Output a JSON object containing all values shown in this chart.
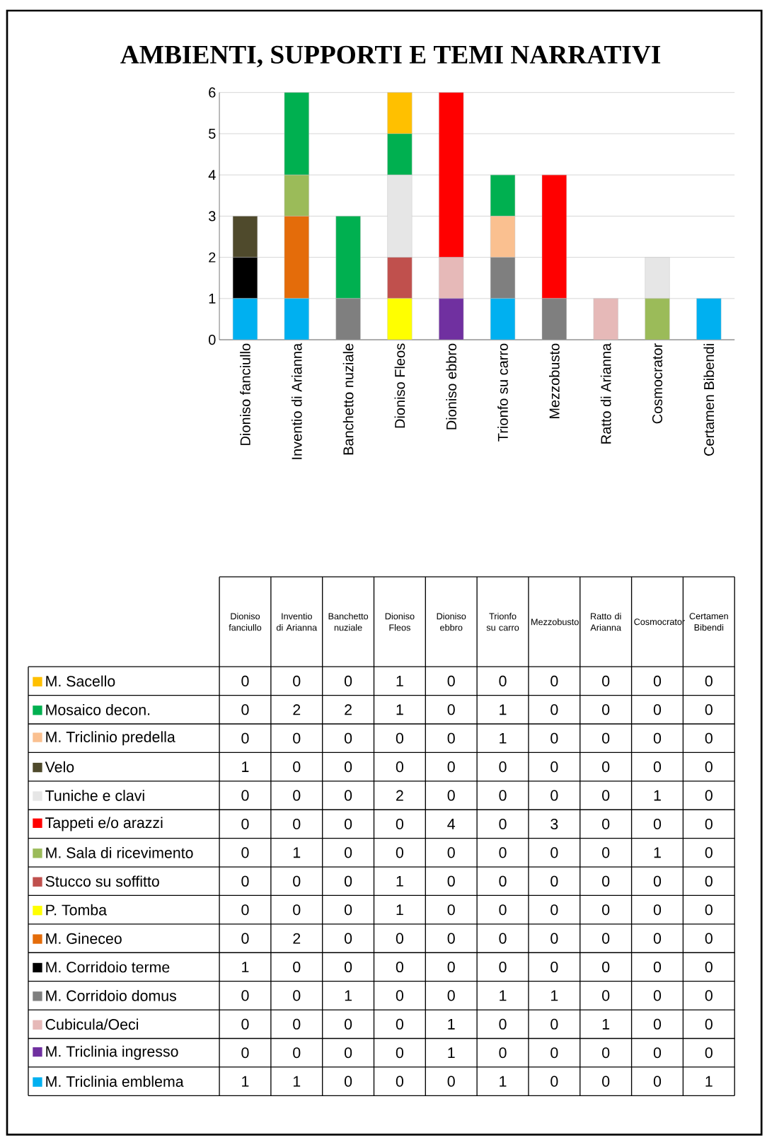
{
  "chart_data": {
    "type": "bar",
    "title": "AMBIENTI, SUPPORTI E TEMI NARRATIVI",
    "categories": [
      "Dioniso fanciullo",
      "Inventio di Arianna",
      "Banchetto nuziale",
      "Dioniso Fleos",
      "Dioniso ebbro",
      "Trionfo su carro",
      "Mezzobusto",
      "Ratto di Arianna",
      "Cosmocrator",
      "Certamen Bibendi"
    ],
    "stacked": true,
    "ylim": [
      0,
      6
    ],
    "yticks": [
      0,
      1,
      2,
      3,
      4,
      5,
      6
    ],
    "grid": "y",
    "legend": "bottom",
    "series": [
      {
        "name": "M. Triclinia emblema",
        "color": "#00b0f0",
        "values": [
          1,
          1,
          0,
          0,
          0,
          1,
          0,
          0,
          0,
          1
        ],
        "value_labels": [
          "1",
          "1",
          "0",
          "0",
          "0",
          "1",
          "0",
          "0",
          "0",
          "1"
        ]
      },
      {
        "name": "M. Triclinia ingresso",
        "color": "#7030a0",
        "values": [
          0,
          0,
          0,
          0,
          1,
          0,
          0,
          0,
          0,
          0
        ],
        "value_labels": [
          "0",
          "0",
          "0",
          "0",
          "1",
          "0",
          "0",
          "0",
          "0",
          "0"
        ]
      },
      {
        "name": "Cubicula/Oeci",
        "color": "#e6b9b8",
        "values": [
          0,
          0,
          0,
          0,
          1,
          0,
          0,
          1,
          0,
          0
        ],
        "value_labels": [
          "0",
          "0",
          "0",
          "0",
          "1",
          "0",
          "0",
          "1",
          "0",
          "0"
        ]
      },
      {
        "name": "M. Corridoio domus",
        "color": "#7f7f7f",
        "values": [
          0,
          0,
          1,
          0,
          0,
          1,
          1,
          0,
          0,
          0
        ],
        "value_labels": [
          "0",
          "0",
          "1",
          "0",
          "0",
          "1",
          "1",
          "0",
          "0",
          "0"
        ]
      },
      {
        "name": "M. Corridoio terme",
        "color": "#000000",
        "values": [
          1,
          0,
          0,
          0,
          0,
          0,
          0,
          0,
          0,
          0
        ],
        "value_labels": [
          "1",
          "0",
          "0",
          "0",
          "0",
          "0",
          "0",
          "0",
          "0",
          "0"
        ]
      },
      {
        "name": "M. Gineceo",
        "color": "#e46c0a",
        "values": [
          0,
          2,
          0,
          0,
          0,
          0,
          0,
          0,
          0,
          0
        ],
        "value_labels": [
          "0",
          "2",
          "0",
          "0",
          "0",
          "0",
          "0",
          "0",
          "0",
          "0"
        ]
      },
      {
        "name": "P. Tomba",
        "color": "#ffff00",
        "values": [
          0,
          0,
          0,
          1,
          0,
          0,
          0,
          0,
          0,
          0
        ],
        "value_labels": [
          "0",
          "0",
          "0",
          "1",
          "0",
          "0",
          "0",
          "0",
          "0",
          "0"
        ]
      },
      {
        "name": "Stucco su soffitto",
        "color": "#c0504d",
        "values": [
          0,
          0,
          0,
          1,
          0,
          0,
          0,
          0,
          0,
          0
        ],
        "value_labels": [
          "0",
          "0",
          "0",
          "1",
          "0",
          "0",
          "0",
          "0",
          "0",
          "0"
        ]
      },
      {
        "name": "M. Sala di ricevimento",
        "color": "#9bbb59",
        "values": [
          0,
          1,
          0,
          0,
          0,
          0,
          0,
          0,
          1,
          0
        ],
        "value_labels": [
          "0",
          "1",
          "0",
          "0",
          "0",
          "0",
          "0",
          "0",
          "1",
          "0"
        ]
      },
      {
        "name": "Tappeti e/o arazzi",
        "color": "#ff0000",
        "values": [
          0,
          0,
          0,
          0,
          4,
          0,
          3,
          0,
          0,
          0
        ],
        "value_labels": [
          "0",
          "0",
          "0",
          "0",
          "4",
          "0",
          "3",
          "0",
          "0",
          "0"
        ]
      },
      {
        "name": "Tuniche e clavi",
        "color": "#e6e6e6",
        "values": [
          0,
          0,
          0,
          2,
          0,
          0,
          0,
          0,
          1,
          0
        ],
        "value_labels": [
          "0",
          "0",
          "0",
          "2",
          "0",
          "0",
          "0",
          "0",
          "1",
          "0"
        ]
      },
      {
        "name": "Velo",
        "color": "#4f4a2c",
        "values": [
          1,
          0,
          0,
          0,
          0,
          0,
          0,
          0,
          0,
          0
        ],
        "value_labels": [
          "1",
          "0",
          "0",
          "0",
          "0",
          "0",
          "0",
          "0",
          "0",
          "0"
        ]
      },
      {
        "name": "M. Triclinio predella",
        "color": "#fac090",
        "values": [
          0,
          0,
          0,
          0,
          0,
          1,
          0,
          0,
          0,
          0
        ],
        "value_labels": [
          "0",
          "0",
          "0",
          "0",
          "0",
          "1",
          "0",
          "0",
          "0",
          "0"
        ]
      },
      {
        "name": "Mosaico decon.",
        "color": "#00b050",
        "values": [
          0,
          2,
          2,
          1,
          0,
          1,
          0,
          0,
          0,
          0
        ],
        "value_labels": [
          "0",
          "2",
          "2",
          "1",
          "0",
          "1",
          "0",
          "0",
          "0",
          "0"
        ]
      },
      {
        "name": "M. Sacello",
        "color": "#ffc000",
        "values": [
          0,
          0,
          0,
          1,
          0,
          0,
          0,
          0,
          0,
          0
        ],
        "value_labels": [
          "0",
          "0",
          "0",
          "1",
          "0",
          "0",
          "0",
          "0",
          "0",
          "0"
        ]
      }
    ]
  }
}
